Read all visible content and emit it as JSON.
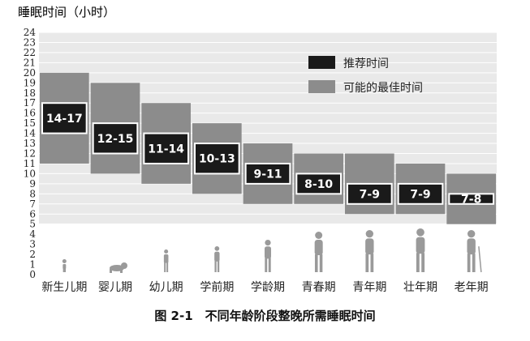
{
  "chart_data": {
    "type": "bar",
    "ylabel": "睡眠时间（小时）",
    "ylim": [
      0,
      24
    ],
    "yticks": [
      0,
      1,
      2,
      3,
      4,
      5,
      6,
      7,
      8,
      9,
      10,
      11,
      12,
      13,
      14,
      15,
      16,
      17,
      18,
      19,
      20,
      21,
      22,
      23,
      24
    ],
    "categories": [
      "新生儿期",
      "婴儿期",
      "幼儿期",
      "学前期",
      "学龄期",
      "青春期",
      "青年期",
      "壮年期",
      "老年期"
    ],
    "series": [
      {
        "name": "推荐时间",
        "color": "#1a1a1a",
        "ranges": [
          [
            14,
            17
          ],
          [
            12,
            15
          ],
          [
            11,
            14
          ],
          [
            10,
            13
          ],
          [
            9,
            11
          ],
          [
            8,
            10
          ],
          [
            7,
            9
          ],
          [
            7,
            9
          ],
          [
            7,
            8
          ]
        ],
        "labels": [
          "14-17",
          "12-15",
          "11-14",
          "10-13",
          "9-11",
          "8-10",
          "7-9",
          "7-9",
          "7-8"
        ]
      },
      {
        "name": "可能的最佳时间",
        "color": "#8c8c8c",
        "ranges": [
          [
            11,
            20
          ],
          [
            10,
            19
          ],
          [
            9,
            17
          ],
          [
            8,
            15
          ],
          [
            7,
            13
          ],
          [
            7,
            12
          ],
          [
            6,
            12
          ],
          [
            6,
            11
          ],
          [
            5,
            10
          ]
        ]
      }
    ],
    "grid": true,
    "legend_position": "top-right",
    "icons": [
      "baby-icon",
      "crawling-infant-icon",
      "toddler-icon",
      "preschooler-icon",
      "schoolchild-icon",
      "teenager-icon",
      "young-adult-icon",
      "adult-icon",
      "elderly-icon"
    ]
  },
  "caption": "图 2-1　不同年龄阶段整晚所需睡眠时间"
}
